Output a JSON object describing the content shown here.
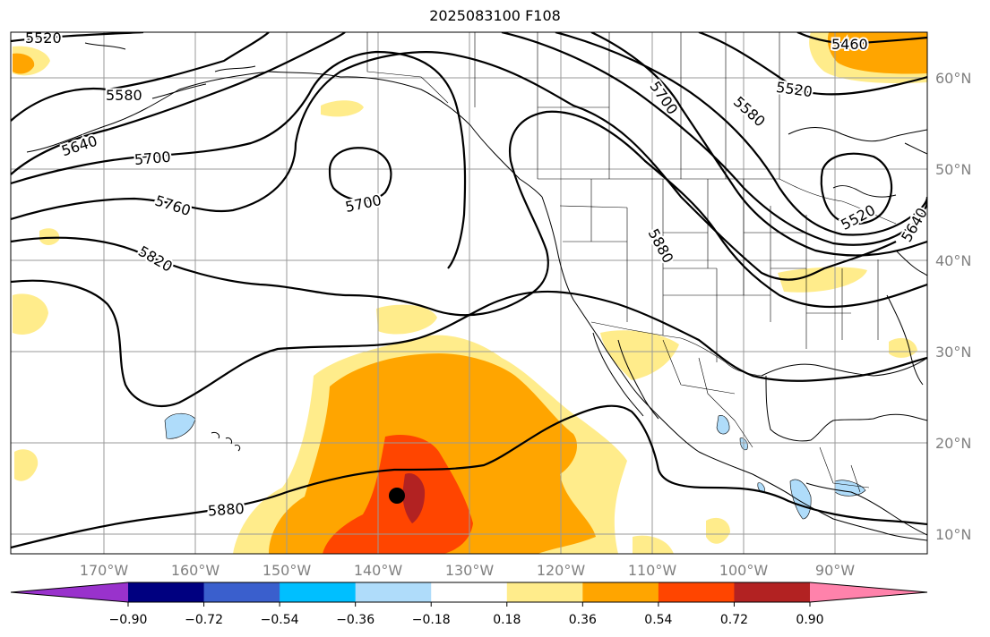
{
  "title": "2025083100 F108",
  "lon_labels": [
    "170°W",
    "160°W",
    "150°W",
    "140°W",
    "130°W",
    "120°W",
    "110°W",
    "100°W",
    "90°W"
  ],
  "lat_labels": [
    "60°N",
    "50°N",
    "40°N",
    "30°N",
    "20°N",
    "10°N"
  ],
  "contour_labels": [
    "5520",
    "5580",
    "5640",
    "5700",
    "5760",
    "5820",
    "5700",
    "5880",
    "5700",
    "5580",
    "5520",
    "5460",
    "5880",
    "5520",
    "5640"
  ],
  "colorbar": {
    "ticks": [
      "−0.90",
      "−0.72",
      "−0.54",
      "−0.36",
      "−0.18",
      "0.18",
      "0.36",
      "0.54",
      "0.72",
      "0.90"
    ],
    "colors": [
      "#9932cc",
      "#000080",
      "#3a5fcd",
      "#00bfff",
      "#afdcfa",
      "#ffffff",
      "#ffec8b",
      "#ffa500",
      "#ff4500",
      "#b22222",
      "#ff82ab"
    ]
  },
  "colors": {
    "shade_light": "#ffec8b",
    "shade_orange": "#ffa500",
    "shade_red": "#ff4500",
    "shade_darkred": "#b22222",
    "shade_blue": "#afdcfa"
  },
  "marker": "storm-center"
}
